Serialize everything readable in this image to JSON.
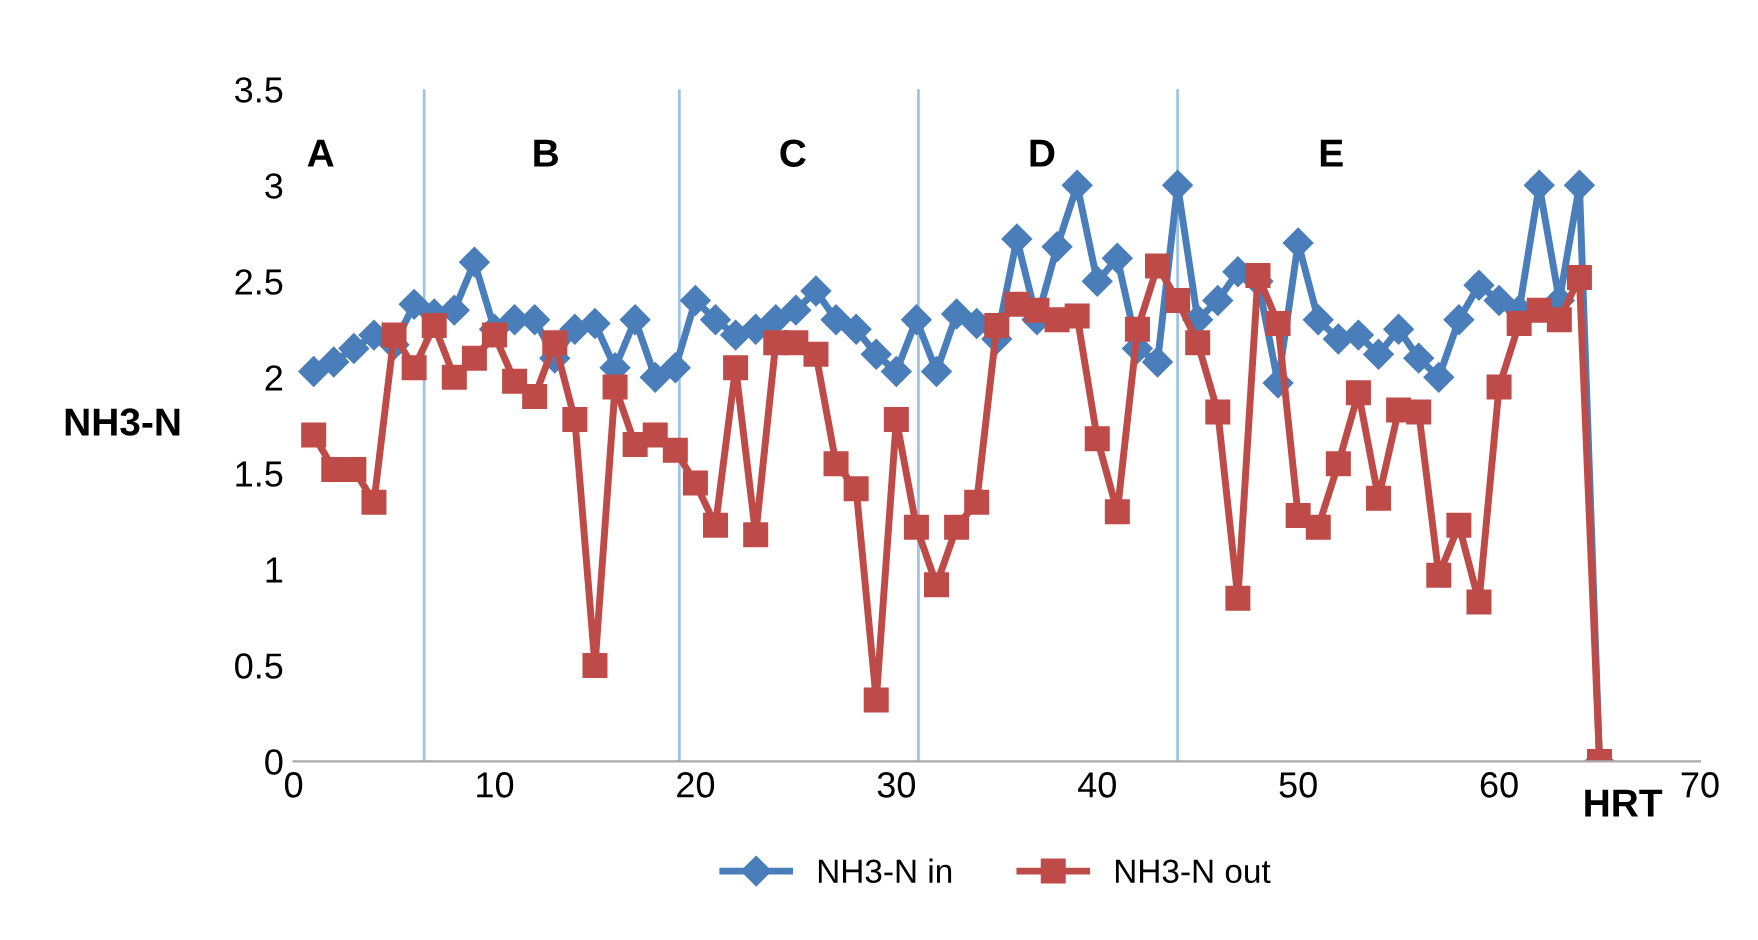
{
  "chart_data": {
    "type": "line",
    "xlabel": "HRT",
    "ylabel": "NH3-N",
    "x": [
      1,
      2,
      3,
      4,
      5,
      6,
      7,
      8,
      9,
      10,
      11,
      12,
      13,
      14,
      15,
      16,
      17,
      18,
      19,
      20,
      21,
      22,
      23,
      24,
      25,
      26,
      27,
      28,
      29,
      30,
      31,
      32,
      33,
      34,
      35,
      36,
      37,
      38,
      39,
      40,
      41,
      42,
      43,
      44,
      45,
      46,
      47,
      48,
      49,
      50,
      51,
      52,
      53,
      54,
      55,
      56,
      57,
      58,
      59,
      60,
      61,
      62,
      63,
      64,
      65
    ],
    "series": [
      {
        "name": "NH3-N in",
        "color": "#4a7ebb",
        "marker": "diamond",
        "values": [
          2.03,
          2.08,
          2.15,
          2.22,
          2.17,
          2.38,
          2.33,
          2.35,
          2.6,
          2.25,
          2.3,
          2.3,
          2.1,
          2.25,
          2.28,
          2.05,
          2.3,
          2.0,
          2.05,
          2.4,
          2.3,
          2.22,
          2.25,
          2.3,
          2.35,
          2.45,
          2.3,
          2.25,
          2.12,
          2.03,
          2.3,
          2.03,
          2.33,
          2.28,
          2.2,
          2.72,
          2.3,
          2.68,
          3.0,
          2.5,
          2.62,
          2.15,
          2.08,
          3.0,
          2.3,
          2.4,
          2.55,
          2.5,
          1.97,
          2.7,
          2.3,
          2.2,
          2.22,
          2.12,
          2.25,
          2.1,
          2.0,
          2.3,
          2.48,
          2.4,
          2.35,
          3.0,
          2.4,
          3.0,
          0.0
        ]
      },
      {
        "name": "NH3-N out",
        "color": "#be4b48",
        "marker": "square",
        "values": [
          1.7,
          1.52,
          1.52,
          1.35,
          2.22,
          2.05,
          2.27,
          2.0,
          2.1,
          2.22,
          1.98,
          1.9,
          2.18,
          1.78,
          0.5,
          1.95,
          1.65,
          1.7,
          1.62,
          1.45,
          1.23,
          2.05,
          1.18,
          2.18,
          2.18,
          2.12,
          1.55,
          1.42,
          0.32,
          1.78,
          1.22,
          0.92,
          1.22,
          1.35,
          2.27,
          2.38,
          2.35,
          2.3,
          2.32,
          1.68,
          1.3,
          2.25,
          2.58,
          2.4,
          2.18,
          1.82,
          0.85,
          2.53,
          2.28,
          1.28,
          1.22,
          1.55,
          1.92,
          1.37,
          1.83,
          1.82,
          0.97,
          1.23,
          0.83,
          1.95,
          2.28,
          2.35,
          2.3,
          2.52,
          0.0
        ]
      }
    ],
    "xlim": [
      0,
      70
    ],
    "xticks": [
      0,
      10,
      20,
      30,
      40,
      50,
      60,
      70
    ],
    "ylim": [
      0,
      3.5
    ],
    "yticks": [
      0,
      0.5,
      1,
      1.5,
      2,
      2.5,
      3,
      3.5
    ],
    "ref_lines": [
      {
        "axis": "x",
        "value": 6.5,
        "color": "#9dc3e6"
      },
      {
        "axis": "x",
        "value": 19.2,
        "color": "#9dc3e6"
      },
      {
        "axis": "x",
        "value": 31.1,
        "color": "#9dc3e6"
      },
      {
        "axis": "x",
        "value": 44,
        "color": "#9dc3e6"
      }
    ],
    "annotations": [
      "A",
      "B",
      "C",
      "D",
      "E"
    ],
    "legend": "bottom",
    "grid": false
  }
}
